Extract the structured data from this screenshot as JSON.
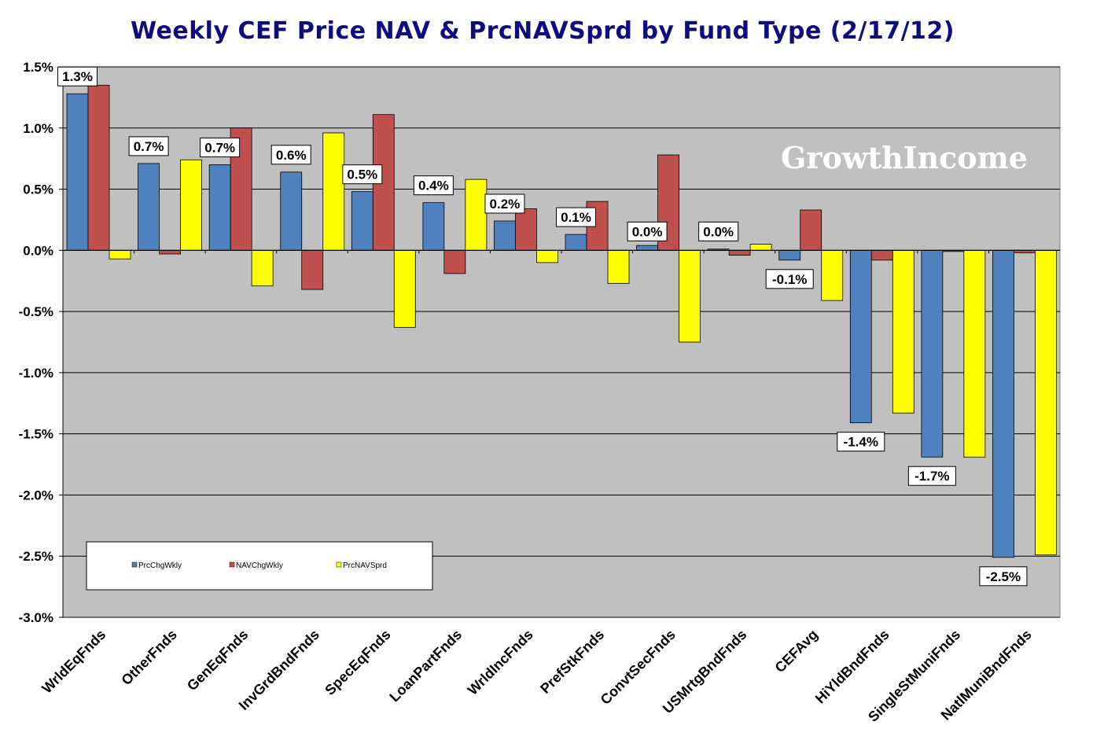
{
  "chart_data": {
    "type": "bar",
    "title": "Weekly CEF Price NAV & PrcNAVSprd by Fund Type  (2/17/12)",
    "watermark": "GrowthIncome",
    "categories": [
      "WrldEqFnds",
      "OtherFnds",
      "GenEqFnds",
      "InvGrdBndFnds",
      "SpecEqFnds",
      "LoanPartFnds",
      "WrldIncFnds",
      "PrefStkFnds",
      "ConvtSecFnds",
      "USMrtgBndFnds",
      "CEFAvg",
      "HiYldBndFnds",
      "SingleStMuniFnds",
      "NatlMuniBndFnds"
    ],
    "series": [
      {
        "name": "PrcChgWkly",
        "color": "#4f81bd",
        "values": [
          1.28,
          0.71,
          0.7,
          0.64,
          0.48,
          0.39,
          0.24,
          0.13,
          0.04,
          0.01,
          -0.08,
          -1.41,
          -1.69,
          -2.51
        ]
      },
      {
        "name": "NAVChgWkly",
        "color": "#c0504d",
        "values": [
          1.35,
          -0.03,
          1.0,
          -0.32,
          1.11,
          -0.19,
          0.34,
          0.4,
          0.78,
          -0.04,
          0.33,
          -0.08,
          -0.01,
          -0.02
        ]
      },
      {
        "name": "PrcNAVSprd",
        "color": "#ffff00",
        "values": [
          -0.07,
          0.74,
          -0.29,
          0.96,
          -0.63,
          0.58,
          -0.1,
          -0.27,
          -0.75,
          0.05,
          -0.41,
          -1.33,
          -1.69,
          -2.49
        ]
      }
    ],
    "data_labels": [
      "1.3%",
      "0.7%",
      "0.7%",
      "0.6%",
      "0.5%",
      "0.4%",
      "0.2%",
      "0.1%",
      "0.0%",
      "0.0%",
      "-0.1%",
      "-1.4%",
      "-1.7%",
      "-2.5%"
    ],
    "ylim": [
      -3.0,
      1.5
    ],
    "yticks": [
      1.5,
      1.0,
      0.5,
      0.0,
      -0.5,
      -1.0,
      -1.5,
      -2.0,
      -2.5,
      -3.0
    ],
    "ytick_labels": [
      "1.5%",
      "1.0%",
      "0.5%",
      "0.0%",
      "-0.5%",
      "-1.0%",
      "-1.5%",
      "-2.0%",
      "-2.5%",
      "-3.0%"
    ],
    "grid": true,
    "legend_position": "bottom-left",
    "plot_background": "#c0c0c0"
  }
}
